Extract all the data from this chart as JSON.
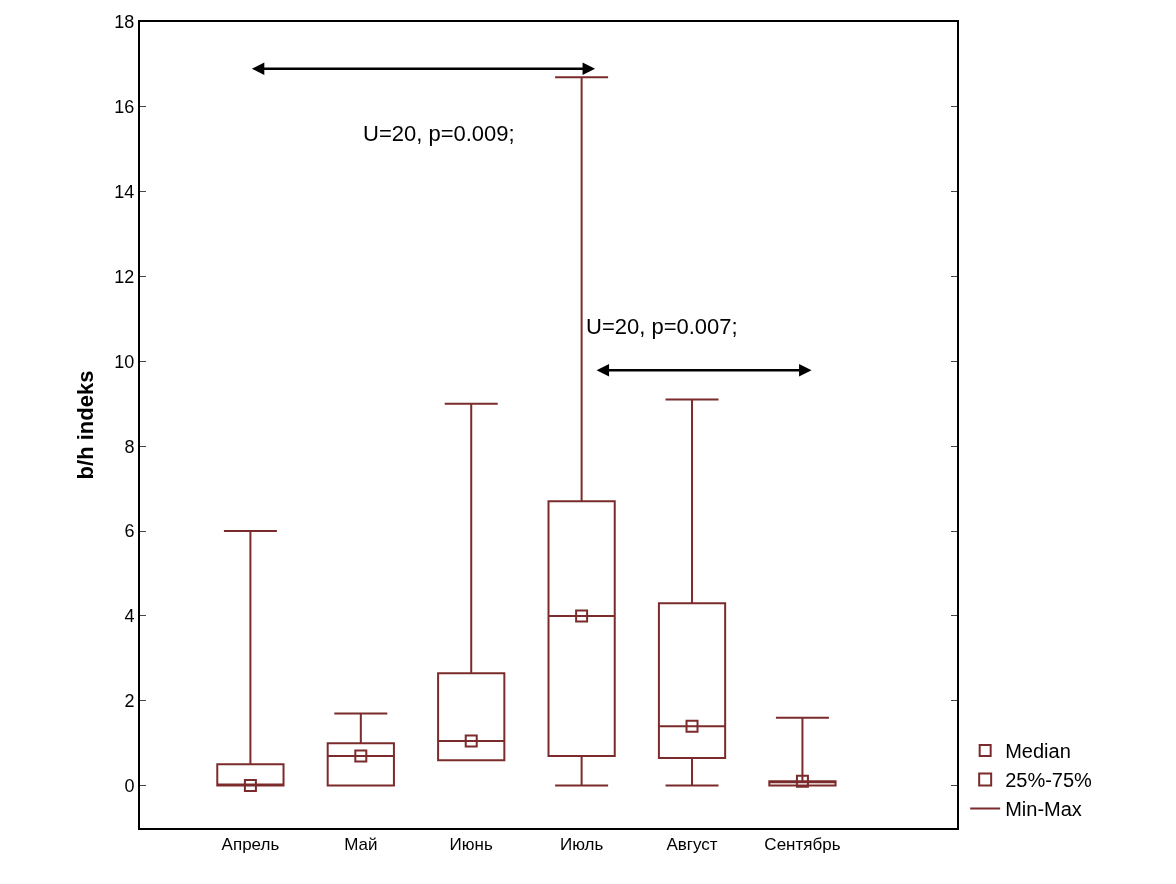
{
  "chart_data": {
    "type": "box",
    "ylabel": "b/h indeks",
    "categories": [
      "Апрель",
      "Май",
      "Июнь",
      "Июль",
      "Август",
      "Сентябрь"
    ],
    "series": [
      {
        "name": "Median",
        "type": "scatter",
        "marker": "square",
        "color": "#7b2b2b",
        "values": [
          0,
          0.7,
          1.05,
          4.0,
          1.4,
          0.1
        ]
      },
      {
        "name": "25%-75%",
        "color": "#7b2b2b",
        "boxes": [
          {
            "low": 0,
            "q1": 0,
            "median": 0,
            "q3": 0.5,
            "high": 6
          },
          {
            "low": 0,
            "q1": 0,
            "median": 0.7,
            "q3": 1.0,
            "high": 1.7
          },
          {
            "low": 0.6,
            "q1": 0.6,
            "median": 1.05,
            "q3": 2.65,
            "high": 9
          },
          {
            "low": 0,
            "q1": 0.7,
            "median": 4.0,
            "q3": 6.7,
            "high": 16.7
          },
          {
            "low": 0,
            "q1": 0.65,
            "median": 1.4,
            "q3": 4.3,
            "high": 9.1
          },
          {
            "low": 0,
            "q1": 0,
            "median": 0.1,
            "q3": 0.1,
            "high": 1.6
          }
        ]
      }
    ],
    "annotations": [
      "U=20, p=0.009;",
      "U=20, p=0.007;",
      "Min-Max"
    ],
    "ylim": [
      -1,
      18
    ],
    "yticks": [
      0,
      2,
      4,
      6,
      8,
      10,
      12,
      14,
      16,
      18
    ],
    "legend": "bottom right"
  }
}
